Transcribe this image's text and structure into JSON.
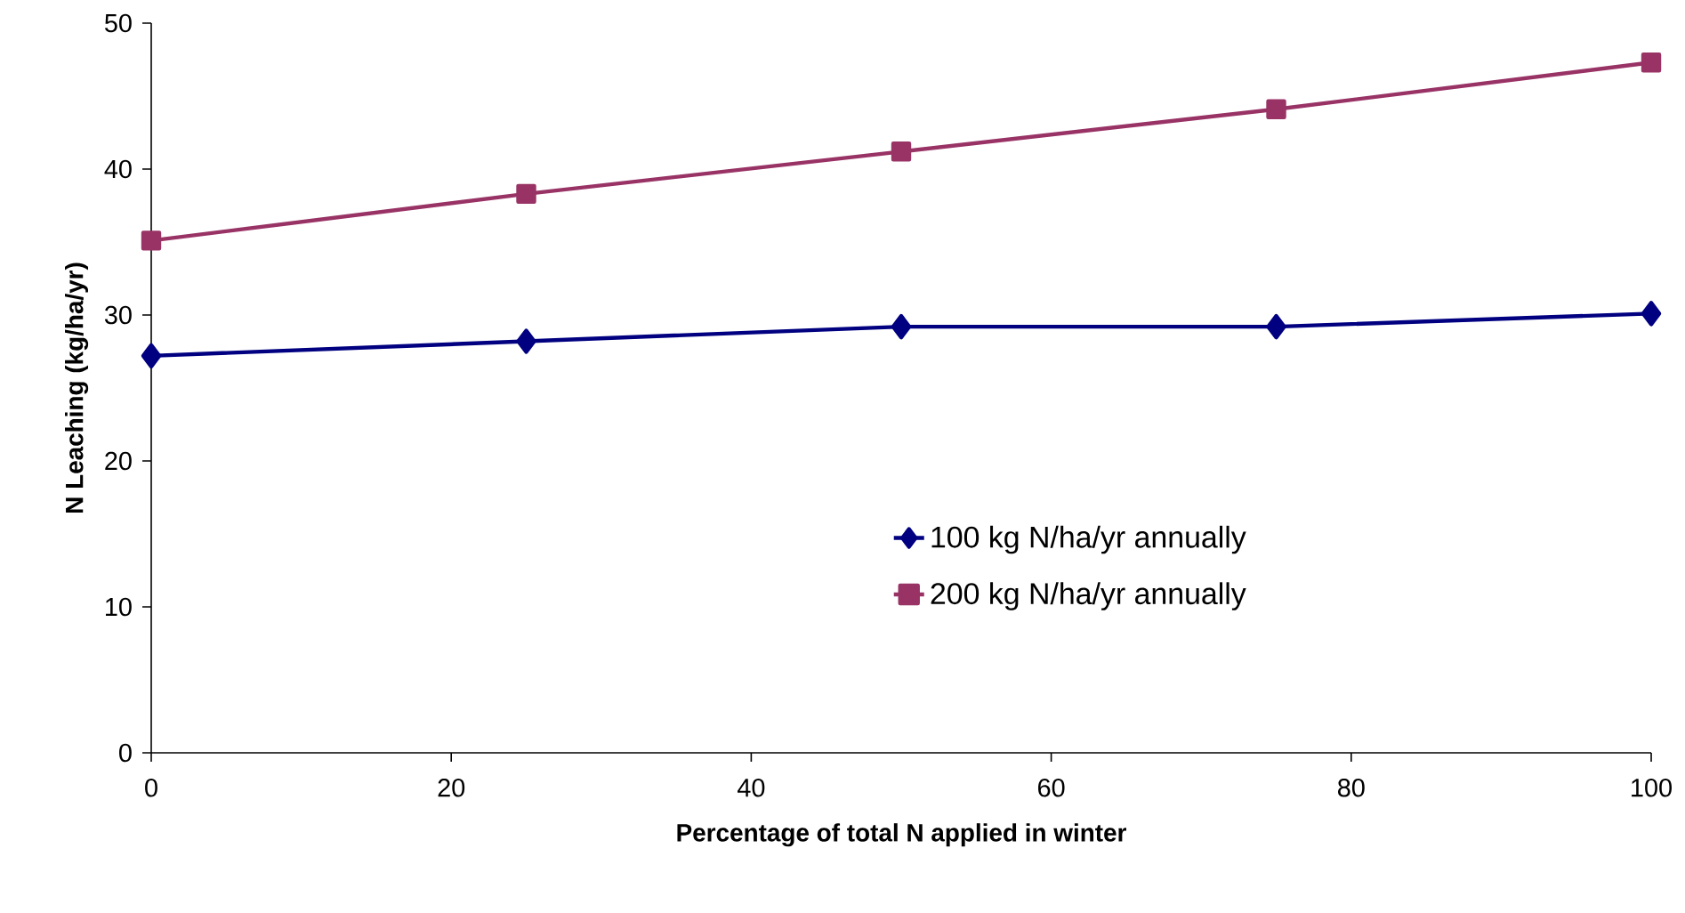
{
  "chart_data": {
    "type": "line",
    "xlabel": "Percentage of total N applied in winter",
    "ylabel": "N Leaching (kg/ha/yr)",
    "x": [
      0,
      25,
      50,
      75,
      100
    ],
    "series": [
      {
        "name": "100 kg N/ha/yr annually",
        "color": "#000080",
        "marker": "diamond",
        "values": [
          27.2,
          28.2,
          29.2,
          29.2,
          30.1
        ]
      },
      {
        "name": "200 kg N/ha/yr annually",
        "color": "#993366",
        "marker": "square",
        "values": [
          35.1,
          38.3,
          41.2,
          44.1,
          47.3
        ]
      }
    ],
    "xlim": [
      0,
      100
    ],
    "ylim": [
      0,
      50
    ],
    "xticks": [
      0,
      20,
      40,
      60,
      80,
      100
    ],
    "yticks": [
      0,
      10,
      20,
      30,
      40,
      50
    ],
    "legend": "right",
    "line_style": "solid"
  }
}
